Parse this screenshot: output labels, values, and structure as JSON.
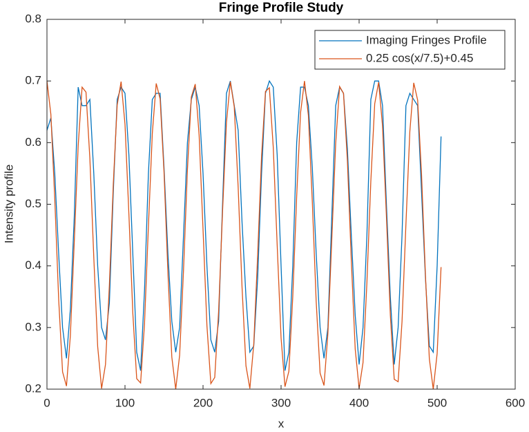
{
  "chart_data": {
    "type": "line",
    "title": "Fringe Profile Study",
    "xlabel": "x",
    "ylabel": "Intensity profile",
    "x": [
      0,
      5,
      10,
      15,
      20,
      25,
      30,
      35,
      40,
      45,
      50,
      55,
      60,
      65,
      70,
      75,
      80,
      85,
      90,
      95,
      100,
      105,
      110,
      115,
      120,
      125,
      130,
      135,
      140,
      145,
      150,
      155,
      160,
      165,
      170,
      175,
      180,
      185,
      190,
      195,
      200,
      205,
      210,
      215,
      220,
      225,
      230,
      235,
      240,
      245,
      250,
      255,
      260,
      265,
      270,
      275,
      280,
      285,
      290,
      295,
      300,
      305,
      310,
      315,
      320,
      325,
      330,
      335,
      340,
      345,
      350,
      355,
      360,
      365,
      370,
      375,
      380,
      385,
      390,
      395,
      400,
      405,
      410,
      415,
      420,
      425,
      430,
      435,
      440,
      445,
      450,
      455,
      460,
      465,
      470,
      475,
      480,
      485,
      490,
      495,
      500,
      505
    ],
    "series": [
      {
        "name": "Imaging Fringes Profile",
        "color": "#0072BD",
        "values": [
          0.62,
          0.64,
          0.55,
          0.42,
          0.3,
          0.25,
          0.33,
          0.48,
          0.69,
          0.66,
          0.66,
          0.67,
          0.55,
          0.4,
          0.3,
          0.28,
          0.34,
          0.52,
          0.67,
          0.69,
          0.68,
          0.58,
          0.42,
          0.26,
          0.23,
          0.36,
          0.55,
          0.67,
          0.68,
          0.68,
          0.56,
          0.42,
          0.31,
          0.26,
          0.3,
          0.45,
          0.6,
          0.67,
          0.69,
          0.66,
          0.55,
          0.4,
          0.28,
          0.26,
          0.31,
          0.5,
          0.68,
          0.7,
          0.66,
          0.62,
          0.47,
          0.35,
          0.26,
          0.27,
          0.38,
          0.55,
          0.68,
          0.7,
          0.69,
          0.58,
          0.4,
          0.23,
          0.26,
          0.4,
          0.6,
          0.69,
          0.69,
          0.66,
          0.56,
          0.42,
          0.3,
          0.25,
          0.3,
          0.48,
          0.66,
          0.69,
          0.68,
          0.59,
          0.45,
          0.32,
          0.24,
          0.3,
          0.45,
          0.67,
          0.7,
          0.7,
          0.66,
          0.5,
          0.35,
          0.24,
          0.3,
          0.45,
          0.66,
          0.68,
          0.67,
          0.66,
          0.52,
          0.38,
          0.27,
          0.26,
          0.4,
          0.61
        ]
      },
      {
        "name": "0.25 cos(x/7.5)+0.45",
        "color": "#D95319",
        "values": [
          0.7,
          0.646,
          0.509,
          0.346,
          0.228,
          0.205,
          0.287,
          0.439,
          0.595,
          0.69,
          0.682,
          0.574,
          0.414,
          0.269,
          0.201,
          0.24,
          0.369,
          0.533,
          0.661,
          0.699,
          0.63,
          0.484,
          0.324,
          0.217,
          0.21,
          0.306,
          0.464,
          0.615,
          0.696,
          0.671,
          0.552,
          0.389,
          0.252,
          0.2,
          0.255,
          0.393,
          0.556,
          0.674,
          0.695,
          0.612,
          0.459,
          0.303,
          0.209,
          0.219,
          0.327,
          0.488,
          0.633,
          0.699,
          0.658,
          0.528,
          0.365,
          0.238,
          0.201,
          0.273,
          0.418,
          0.578,
          0.683,
          0.689,
          0.592,
          0.434,
          0.283,
          0.204,
          0.229,
          0.35,
          0.513,
          0.649,
          0.7,
          0.644,
          0.505,
          0.342,
          0.226,
          0.206,
          0.29,
          0.443,
          0.599,
          0.691,
          0.68,
          0.57,
          0.409,
          0.265,
          0.201,
          0.243,
          0.373,
          0.537,
          0.663,
          0.698,
          0.627,
          0.48,
          0.32,
          0.216,
          0.212,
          0.31,
          0.468,
          0.618,
          0.697,
          0.669,
          0.548,
          0.385,
          0.249,
          0.2,
          0.258,
          0.398
        ]
      }
    ],
    "xlim": [
      0,
      600
    ],
    "xticks": [
      0,
      100,
      200,
      300,
      400,
      500,
      600
    ],
    "ylim": [
      0.2,
      0.8
    ],
    "yticks": [
      0.2,
      0.3,
      0.4,
      0.5,
      0.6,
      0.7,
      0.8
    ],
    "grid": false,
    "legend": "northeast"
  }
}
